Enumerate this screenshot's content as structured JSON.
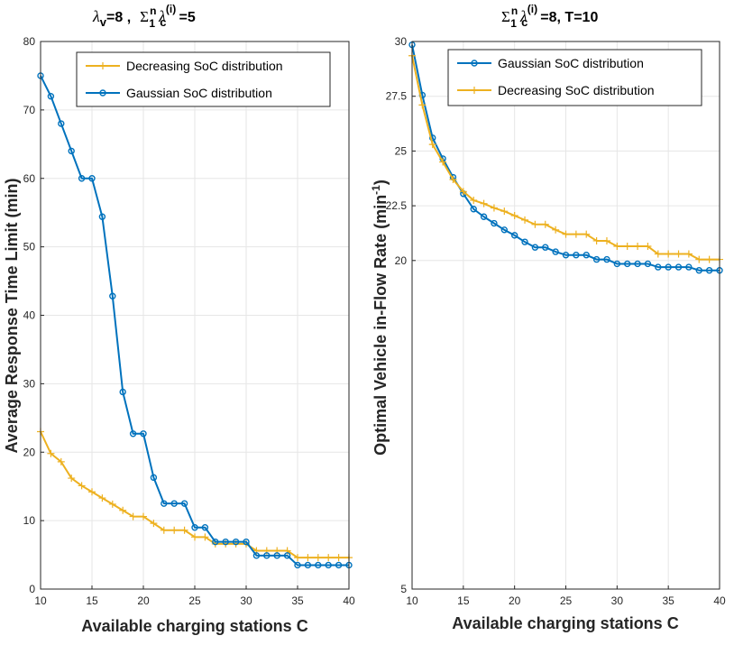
{
  "colors": {
    "gaussian": "#0072BD",
    "decreasing": "#EDB120",
    "grid": "#e6e6e6",
    "axis": "#262626"
  },
  "left": {
    "title": {
      "lam": "λ",
      "v": "v",
      "eq1": "=8 ,",
      "sigma": "Σ",
      "n": "n",
      "one": "1",
      "lam2": "λ",
      "c": "c",
      "i": "(i)",
      "eq2": "=5"
    },
    "xlabel": "Available charging stations C",
    "ylabel": "Average Response Time Limit (min)"
  },
  "right": {
    "title": {
      "sigma": "Σ",
      "n": "n",
      "one": "1",
      "lam": "λ",
      "c": "c",
      "i": "(i)",
      "eq": "=8, T=10"
    },
    "xlabel": "Available charging stations C",
    "ylabel": {
      "main": "Optimal Vehicle in-Flow Rate (min",
      "sup": "-1",
      "close": ")"
    }
  },
  "chart_data": [
    {
      "type": "line",
      "xlim": [
        10,
        40
      ],
      "ylim": [
        0,
        80
      ],
      "xticks": [
        10,
        15,
        20,
        25,
        30,
        35,
        40
      ],
      "yticks": [
        0,
        10,
        20,
        30,
        40,
        50,
        60,
        70,
        80
      ],
      "grid": true,
      "legend_position": "top-right",
      "x": [
        10,
        11,
        12,
        13,
        14,
        15,
        16,
        17,
        18,
        19,
        20,
        21,
        22,
        23,
        24,
        25,
        26,
        27,
        28,
        29,
        30,
        31,
        32,
        33,
        34,
        35,
        36,
        37,
        38,
        39,
        40
      ],
      "series": [
        {
          "name": "Decreasing SoC distribution",
          "marker": "plus",
          "color": "#EDB120",
          "values": [
            23,
            19.8,
            18.6,
            16.2,
            15.1,
            14.2,
            13.3,
            12.4,
            11.5,
            10.6,
            10.6,
            9.6,
            8.6,
            8.6,
            8.6,
            7.6,
            7.6,
            6.6,
            6.6,
            6.6,
            6.6,
            5.6,
            5.6,
            5.6,
            5.6,
            4.6,
            4.6,
            4.6,
            4.6,
            4.6,
            4.6
          ]
        },
        {
          "name": "Gaussian SoC distribution",
          "marker": "circle",
          "color": "#0072BD",
          "values": [
            75,
            72,
            68,
            64,
            60,
            60,
            54.4,
            42.8,
            28.8,
            22.7,
            22.7,
            16.3,
            12.5,
            12.5,
            12.5,
            9,
            9,
            6.9,
            6.9,
            6.9,
            6.9,
            4.9,
            4.9,
            4.9,
            4.9,
            3.5,
            3.5,
            3.5,
            3.5,
            3.5,
            3.5
          ]
        }
      ]
    },
    {
      "type": "line",
      "xlim": [
        10,
        40
      ],
      "ylim": [
        5,
        30
      ],
      "xticks": [
        10,
        15,
        20,
        25,
        30,
        35,
        40
      ],
      "yticks": [
        5,
        20,
        22.5,
        25,
        27.5,
        30
      ],
      "grid": true,
      "legend_position": "top-right",
      "x": [
        10,
        11,
        12,
        13,
        14,
        15,
        16,
        17,
        18,
        19,
        20,
        21,
        22,
        23,
        24,
        25,
        26,
        27,
        28,
        29,
        30,
        31,
        32,
        33,
        34,
        35,
        36,
        37,
        38,
        39,
        40
      ],
      "series": [
        {
          "name": "Gaussian SoC distribution",
          "marker": "circle",
          "color": "#0072BD",
          "values": [
            29.85,
            27.55,
            25.6,
            24.65,
            23.8,
            23.05,
            22.35,
            22.0,
            21.7,
            21.4,
            21.15,
            20.85,
            20.6,
            20.6,
            20.4,
            20.25,
            20.25,
            20.25,
            20.05,
            20.05,
            19.85,
            19.85,
            19.85,
            19.85,
            19.7,
            19.7,
            19.7,
            19.7,
            19.55,
            19.55,
            19.55
          ]
        },
        {
          "name": "Decreasing SoC distribution",
          "marker": "plus",
          "color": "#EDB120",
          "values": [
            29.35,
            27.1,
            25.3,
            24.5,
            23.7,
            23.15,
            22.75,
            22.6,
            22.4,
            22.25,
            22.05,
            21.85,
            21.65,
            21.65,
            21.4,
            21.2,
            21.2,
            21.2,
            20.9,
            20.9,
            20.65,
            20.65,
            20.65,
            20.65,
            20.3,
            20.3,
            20.3,
            20.3,
            20.05,
            20.05,
            20.05
          ]
        }
      ]
    }
  ]
}
